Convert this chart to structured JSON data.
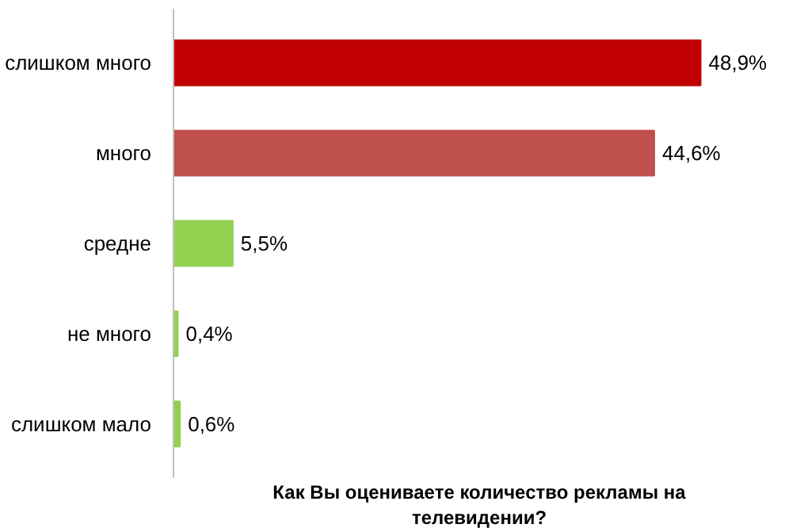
{
  "chart_data": {
    "type": "bar",
    "orientation": "horizontal",
    "title": "Как Вы оцениваете количество рекламы на телевидении?",
    "categories": [
      "слишком много",
      "много",
      "средне",
      "не много",
      "слишком мало"
    ],
    "values": [
      48.9,
      44.6,
      5.5,
      0.4,
      0.6
    ],
    "colors": [
      "#c00000",
      "#c0504d",
      "#92d050",
      "#92d050",
      "#92d050"
    ],
    "value_labels": [
      "48,9%",
      "44,6%",
      "5,5%",
      "0,4%",
      "0,6%"
    ],
    "grid": false
  }
}
